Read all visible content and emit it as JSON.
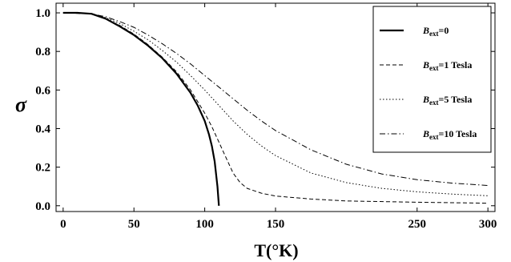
{
  "chart_data": {
    "type": "line",
    "xlabel": "T(°K)",
    "ylabel": "σ",
    "xlim": [
      -5,
      305
    ],
    "ylim": [
      -0.03,
      1.05
    ],
    "x_ticks": [
      0,
      50,
      100,
      150,
      250,
      300
    ],
    "x_tick_labels": [
      "0",
      "50",
      "100",
      "150",
      "250",
      "300"
    ],
    "y_ticks": [
      0.0,
      0.2,
      0.4,
      0.6,
      0.8,
      1.0
    ],
    "y_tick_labels": [
      "0.0",
      "0.2",
      "0.4",
      "0.6",
      "0.8",
      "1.0"
    ],
    "grid": false,
    "legend_position": "right",
    "series": [
      {
        "name": "B_ext=0",
        "legend": {
          "italic": "B",
          "sub": "ext",
          "rest": "=0"
        },
        "style": "solid",
        "points": [
          [
            0,
            1.0
          ],
          [
            10,
            1.0
          ],
          [
            20,
            0.995
          ],
          [
            30,
            0.97
          ],
          [
            40,
            0.93
          ],
          [
            50,
            0.885
          ],
          [
            60,
            0.83
          ],
          [
            70,
            0.765
          ],
          [
            80,
            0.685
          ],
          [
            90,
            0.585
          ],
          [
            95,
            0.52
          ],
          [
            100,
            0.44
          ],
          [
            103,
            0.37
          ],
          [
            105,
            0.31
          ],
          [
            107,
            0.23
          ],
          [
            109,
            0.1
          ],
          [
            110,
            0.0
          ]
        ]
      },
      {
        "name": "B_ext=1 Tesla",
        "legend": {
          "italic": "B",
          "sub": "ext",
          "rest": "=1 Tesla"
        },
        "style": "dashed",
        "points": [
          [
            0,
            1.0
          ],
          [
            20,
            0.995
          ],
          [
            30,
            0.97
          ],
          [
            40,
            0.935
          ],
          [
            50,
            0.89
          ],
          [
            60,
            0.835
          ],
          [
            70,
            0.77
          ],
          [
            80,
            0.695
          ],
          [
            90,
            0.6
          ],
          [
            100,
            0.48
          ],
          [
            105,
            0.41
          ],
          [
            110,
            0.33
          ],
          [
            115,
            0.25
          ],
          [
            120,
            0.17
          ],
          [
            125,
            0.12
          ],
          [
            130,
            0.09
          ],
          [
            140,
            0.065
          ],
          [
            150,
            0.05
          ],
          [
            175,
            0.035
          ],
          [
            200,
            0.025
          ],
          [
            250,
            0.018
          ],
          [
            300,
            0.013
          ]
        ]
      },
      {
        "name": "B_ext=5 Tesla",
        "legend": {
          "italic": "B",
          "sub": "ext",
          "rest": "=5 Tesla"
        },
        "style": "dotted",
        "points": [
          [
            0,
            1.0
          ],
          [
            20,
            0.995
          ],
          [
            30,
            0.975
          ],
          [
            40,
            0.945
          ],
          [
            50,
            0.905
          ],
          [
            60,
            0.86
          ],
          [
            70,
            0.805
          ],
          [
            80,
            0.745
          ],
          [
            90,
            0.675
          ],
          [
            100,
            0.6
          ],
          [
            110,
            0.52
          ],
          [
            120,
            0.44
          ],
          [
            130,
            0.37
          ],
          [
            140,
            0.31
          ],
          [
            150,
            0.26
          ],
          [
            175,
            0.17
          ],
          [
            200,
            0.12
          ],
          [
            225,
            0.09
          ],
          [
            250,
            0.072
          ],
          [
            275,
            0.06
          ],
          [
            300,
            0.052
          ]
        ]
      },
      {
        "name": "B_ext=10 Tesla",
        "legend": {
          "italic": "B",
          "sub": "ext",
          "rest": "=10 Tesla"
        },
        "style": "dashdot",
        "points": [
          [
            0,
            1.0
          ],
          [
            20,
            0.995
          ],
          [
            30,
            0.98
          ],
          [
            40,
            0.955
          ],
          [
            50,
            0.925
          ],
          [
            60,
            0.885
          ],
          [
            70,
            0.84
          ],
          [
            80,
            0.79
          ],
          [
            90,
            0.735
          ],
          [
            100,
            0.675
          ],
          [
            110,
            0.615
          ],
          [
            120,
            0.555
          ],
          [
            130,
            0.495
          ],
          [
            140,
            0.44
          ],
          [
            150,
            0.39
          ],
          [
            175,
            0.29
          ],
          [
            200,
            0.215
          ],
          [
            225,
            0.165
          ],
          [
            250,
            0.135
          ],
          [
            275,
            0.117
          ],
          [
            300,
            0.105
          ]
        ]
      }
    ]
  }
}
